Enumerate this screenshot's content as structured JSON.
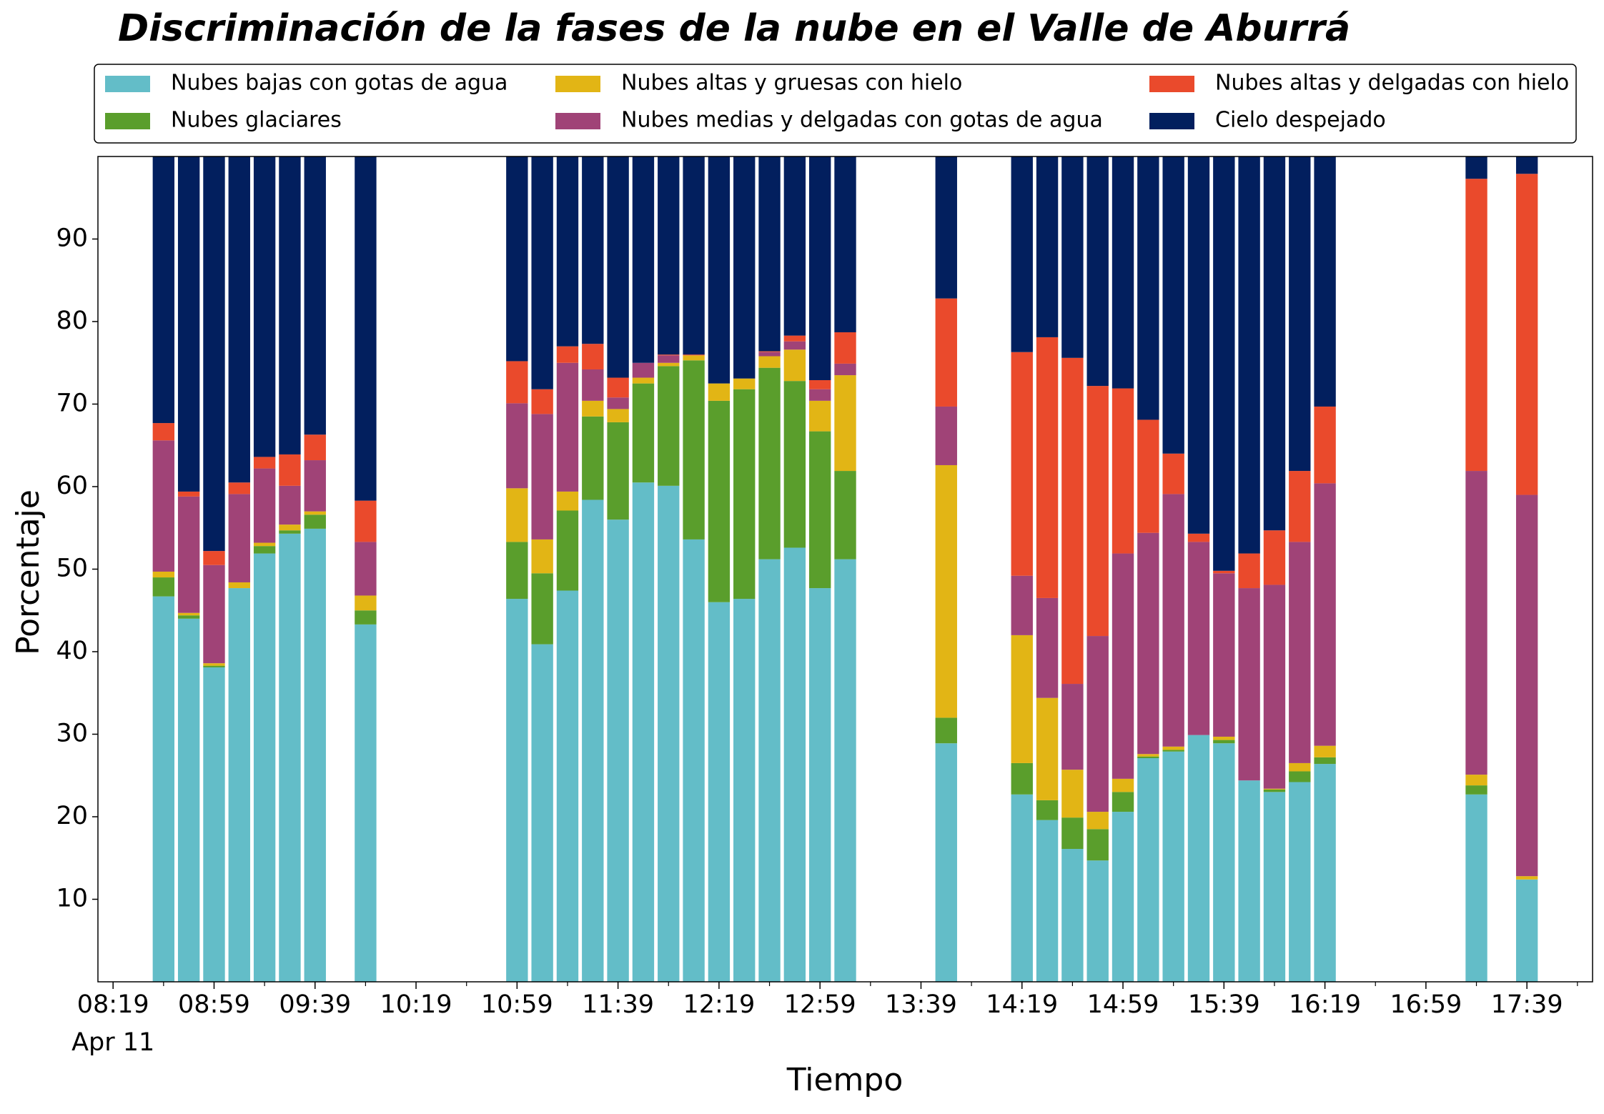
{
  "chart_data": {
    "type": "bar",
    "stacked": true,
    "title": "Discriminación de la fases de la nube en el Valle de Aburrá",
    "x_label": "Tiempo",
    "y_label": "Porcentaje",
    "x_date_label": "Apr 11",
    "x": [
      "08:39",
      "08:49",
      "08:59",
      "09:09",
      "09:19",
      "09:29",
      "09:39",
      "09:59",
      "10:59",
      "11:09",
      "11:19",
      "11:29",
      "11:39",
      "11:49",
      "11:59",
      "12:09",
      "12:19",
      "12:29",
      "12:39",
      "12:49",
      "12:59",
      "13:09",
      "13:49",
      "14:19",
      "14:29",
      "14:39",
      "14:49",
      "14:59",
      "15:09",
      "15:19",
      "15:29",
      "15:39",
      "15:49",
      "15:59",
      "16:09",
      "16:19",
      "17:19",
      "17:39"
    ],
    "series": [
      {
        "name": "Nubes bajas con gotas de agua",
        "color": "#63bdc8",
        "values": [
          46.7,
          44.0,
          38.1,
          47.7,
          51.9,
          54.3,
          54.9,
          43.3,
          46.4,
          40.9,
          47.4,
          58.4,
          56.0,
          60.5,
          60.1,
          53.6,
          46.0,
          46.4,
          51.2,
          52.6,
          47.7,
          51.2,
          28.9,
          22.7,
          19.6,
          16.1,
          14.7,
          20.6,
          27.1,
          27.9,
          29.9,
          28.9,
          24.4,
          23.0,
          24.2,
          26.4,
          22.7,
          12.4
        ]
      },
      {
        "name": "Nubes glaciares",
        "color": "#5a9e2c",
        "values": [
          2.3,
          0.4,
          0.2,
          0,
          0.9,
          0.4,
          1.7,
          1.7,
          6.9,
          8.6,
          9.7,
          10.1,
          11.8,
          12.0,
          14.5,
          21.7,
          24.4,
          25.4,
          23.2,
          20.2,
          19.0,
          10.7,
          3.1,
          3.8,
          2.4,
          3.8,
          3.8,
          2.4,
          0.2,
          0.2,
          0,
          0.4,
          0,
          0.3,
          1.3,
          0.8,
          1.1,
          0
        ]
      },
      {
        "name": "Nubes altas y gruesas con hielo",
        "color": "#e2b515",
        "values": [
          0.7,
          0.3,
          0.3,
          0.7,
          0.4,
          0.7,
          0.4,
          1.8,
          6.5,
          4.1,
          2.3,
          1.9,
          1.6,
          0.7,
          0.4,
          0.6,
          2.1,
          1.3,
          1.4,
          3.8,
          3.7,
          11.6,
          30.6,
          15.5,
          12.4,
          5.8,
          2.1,
          1.6,
          0.3,
          0.4,
          0,
          0.4,
          0,
          0.1,
          1.0,
          1.4,
          1.3,
          0.4
        ]
      },
      {
        "name": "Nubes medias y delgadas con gotas de agua",
        "color": "#a04377",
        "values": [
          15.9,
          14.1,
          11.9,
          10.7,
          9.0,
          4.7,
          6.2,
          6.5,
          10.3,
          15.2,
          15.6,
          3.8,
          1.4,
          1.8,
          0.9,
          0,
          0,
          0,
          0.5,
          1.0,
          1.4,
          1.4,
          7.1,
          7.2,
          12.1,
          10.4,
          21.3,
          27.3,
          26.8,
          30.6,
          23.4,
          19.8,
          23.3,
          24.7,
          26.8,
          31.8,
          36.8,
          46.2
        ]
      },
      {
        "name": "Nubes altas y delgadas con hielo",
        "color": "#ea4a2c",
        "values": [
          2.1,
          0.6,
          1.7,
          1.4,
          1.4,
          3.8,
          3.1,
          5.0,
          5.1,
          3.0,
          2.0,
          3.1,
          2.4,
          0,
          0.1,
          0.1,
          0,
          0,
          0.1,
          0.7,
          1.1,
          3.8,
          13.1,
          27.1,
          31.6,
          39.5,
          30.3,
          20.0,
          13.7,
          4.9,
          1.0,
          0.3,
          4.2,
          6.6,
          8.6,
          9.3,
          35.4,
          38.9
        ]
      },
      {
        "name": "Cielo despejado",
        "color": "#021f5e",
        "values": [
          32.3,
          40.6,
          47.8,
          39.5,
          36.4,
          36.1,
          33.7,
          41.7,
          24.8,
          28.2,
          23.0,
          22.7,
          26.8,
          25.0,
          24.0,
          24.0,
          27.5,
          26.9,
          23.6,
          21.7,
          27.1,
          21.3,
          17.2,
          23.7,
          21.9,
          24.4,
          27.8,
          28.1,
          31.9,
          36.0,
          45.7,
          50.2,
          48.1,
          45.3,
          38.1,
          30.3,
          2.7,
          2.1
        ]
      }
    ],
    "xlim": [
      "08:13",
      "18:05"
    ],
    "xticks": [
      "08:19",
      "08:59",
      "09:39",
      "10:19",
      "10:59",
      "11:39",
      "12:19",
      "12:59",
      "13:39",
      "14:19",
      "14:59",
      "15:39",
      "16:19",
      "16:59",
      "17:39"
    ],
    "xticks_minor": [
      "08:39",
      "09:19",
      "09:59",
      "10:39",
      "11:19",
      "11:59",
      "12:39",
      "13:19",
      "13:59",
      "14:39",
      "15:19",
      "15:59",
      "16:39",
      "17:19",
      "17:59"
    ],
    "ylim": [
      0,
      100
    ],
    "yticks": [
      10,
      20,
      30,
      40,
      50,
      60,
      70,
      80,
      90
    ],
    "legend": "top"
  }
}
